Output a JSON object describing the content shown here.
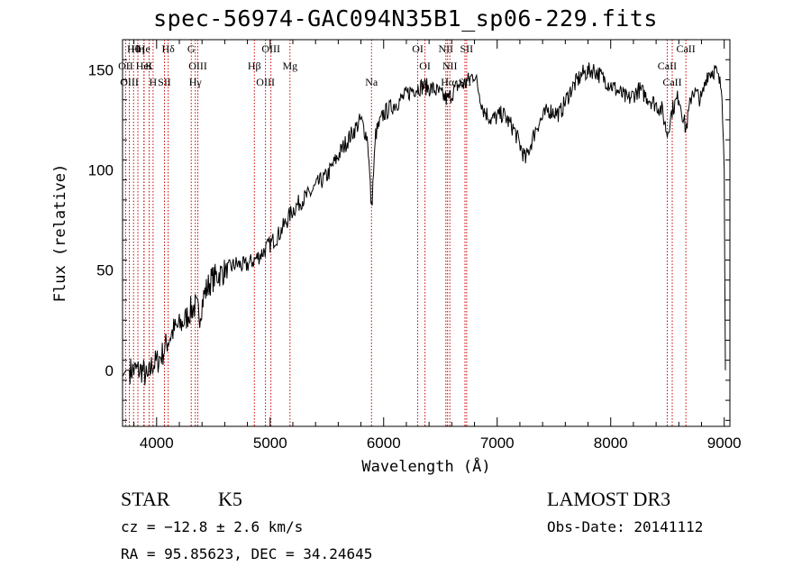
{
  "chart_data": {
    "type": "line",
    "title": "spec-56974-GAC094N35B1_sp06-229.fits",
    "xlabel": "Wavelength (Å)",
    "ylabel": "Flux (relative)",
    "xlim": [
      3700,
      9050
    ],
    "ylim": [
      -28,
      165
    ],
    "xticks": [
      "4000",
      "5000",
      "6000",
      "7000",
      "8000",
      "9000"
    ],
    "yticks": [
      "0",
      "50",
      "100",
      "150"
    ],
    "grid": false,
    "line_color": "#000000",
    "marker_line_color": "#cc0000",
    "series": [
      {
        "x": [
          3700,
          3730,
          3760,
          3800,
          3850,
          3880,
          3920,
          3960,
          4000,
          4050,
          4100,
          4150,
          4200,
          4250,
          4300,
          4340,
          4380,
          4420,
          4480,
          4550,
          4620,
          4700,
          4780,
          4860,
          4920,
          5000,
          5080,
          5150,
          5200,
          5280,
          5350,
          5420,
          5500,
          5580,
          5650,
          5720,
          5800,
          5860,
          5893,
          5930,
          6000,
          6080,
          6150,
          6250,
          6350,
          6450,
          6563,
          6650,
          6720,
          6800,
          6880,
          6950,
          7050,
          7150,
          7250,
          7350,
          7450,
          7550,
          7650,
          7750,
          7850,
          7950,
          8050,
          8150,
          8250,
          8350,
          8450,
          8498,
          8542,
          8600,
          8662,
          8720,
          8800,
          8850,
          8920,
          8980,
          9000,
          9010
        ],
        "y": [
          -3,
          0,
          0,
          0,
          0,
          0,
          -5,
          3,
          4,
          8,
          15,
          20,
          22,
          25,
          30,
          32,
          28,
          38,
          45,
          48,
          50,
          53,
          52,
          55,
          58,
          63,
          68,
          75,
          80,
          85,
          88,
          93,
          97,
          105,
          112,
          118,
          125,
          115,
          80,
          118,
          128,
          132,
          135,
          140,
          142,
          140,
          135,
          142,
          143,
          148,
          130,
          125,
          128,
          120,
          105,
          122,
          130,
          128,
          140,
          148,
          150,
          145,
          140,
          135,
          140,
          135,
          130,
          118,
          130,
          137,
          120,
          140,
          135,
          148,
          150,
          140,
          100,
          0
        ]
      }
    ],
    "lines": [
      {
        "label": "Hθ",
        "wave": 3797
      },
      {
        "label": "OII",
        "wave": 3727
      },
      {
        "label": "OIII",
        "wave": 3760
      },
      {
        "label": "He",
        "wave": 3889
      },
      {
        "label": "K",
        "wave": 3934
      },
      {
        "label": "H",
        "wave": 3969
      },
      {
        "label": "Hη",
        "wave": 3835
      },
      {
        "label": "HeI",
        "wave": 3889
      },
      {
        "label": "SII",
        "wave": 4069
      },
      {
        "label": "Hδ",
        "wave": 4102
      },
      {
        "label": "OIII",
        "wave": 4363
      },
      {
        "label": "Hγ",
        "wave": 4341
      },
      {
        "label": "G",
        "wave": 4305
      },
      {
        "label": "Hβ",
        "wave": 4861
      },
      {
        "label": "OIII",
        "wave": 4959
      },
      {
        "label": "OIII",
        "wave": 5007
      },
      {
        "label": "Mg",
        "wave": 5175
      },
      {
        "label": "Na",
        "wave": 5893
      },
      {
        "label": "OI",
        "wave": 6300
      },
      {
        "label": "OI",
        "wave": 6364
      },
      {
        "label": "Hα",
        "wave": 6563
      },
      {
        "label": "NII",
        "wave": 6548
      },
      {
        "label": "NII",
        "wave": 6583
      },
      {
        "label": "SII",
        "wave": 6716
      },
      {
        "label": "SII",
        "wave": 6731
      },
      {
        "label": "CaII",
        "wave": 8498
      },
      {
        "label": "CaII",
        "wave": 8542
      },
      {
        "label": "CaII",
        "wave": 8662
      }
    ]
  },
  "info": {
    "class": "STAR",
    "subclass": "K5",
    "survey": "LAMOST DR3",
    "cz": "cz = −12.8 ± 2.6 km/s",
    "obs_date": "Obs-Date: 20141112",
    "radec": "RA =  95.85623, DEC =  34.24645"
  }
}
